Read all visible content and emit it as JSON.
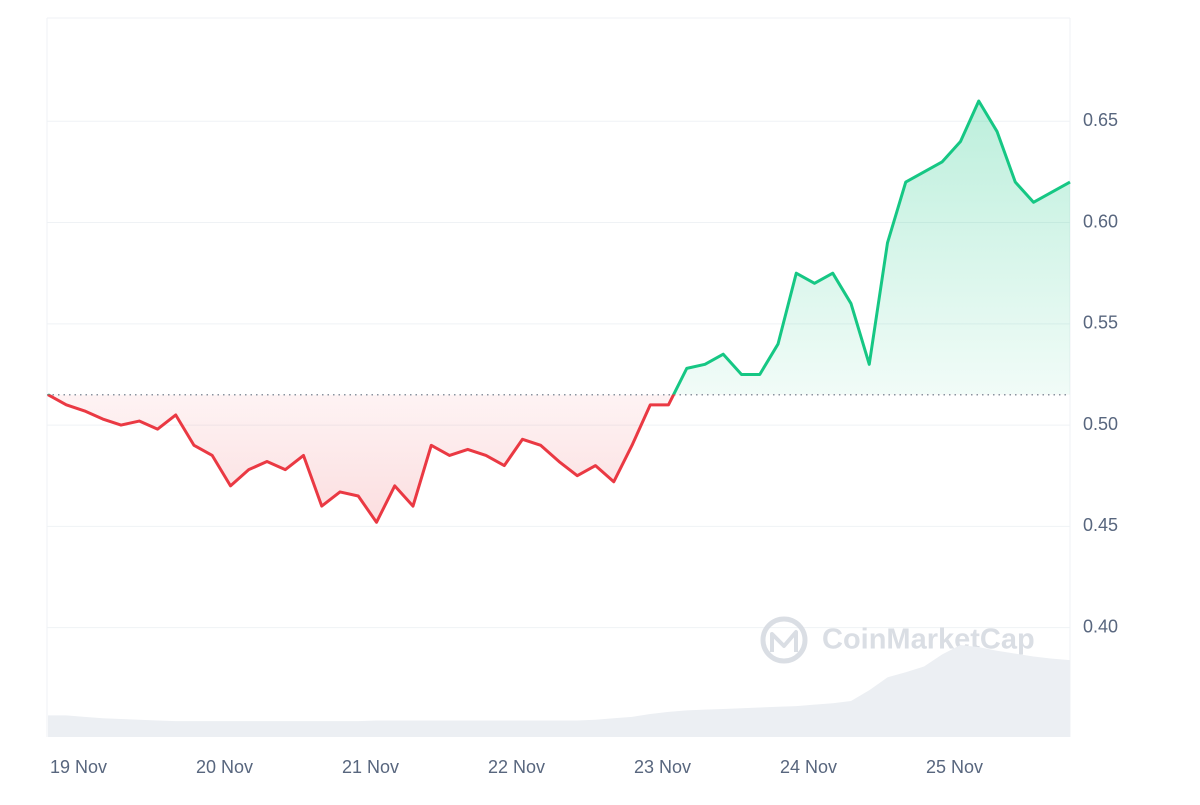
{
  "chart_data": {
    "type": "line",
    "watermark": "CoinMarketCap",
    "categories": [
      "19 Nov",
      null,
      null,
      null,
      null,
      null,
      null,
      null,
      "20 Nov",
      null,
      null,
      null,
      null,
      null,
      null,
      null,
      "21 Nov",
      null,
      null,
      null,
      null,
      null,
      null,
      null,
      "22 Nov",
      null,
      null,
      null,
      null,
      null,
      null,
      null,
      "23 Nov",
      null,
      null,
      null,
      null,
      null,
      null,
      null,
      "24 Nov",
      null,
      null,
      null,
      null,
      null,
      null,
      null,
      "25 Nov",
      null,
      null,
      null,
      null,
      null,
      null,
      null,
      null
    ],
    "baseline": 0.515,
    "up_color": "#16c784",
    "down_color": "#ea3943",
    "series": [
      {
        "values": [
          0.515,
          0.51,
          0.507,
          0.503,
          0.5,
          0.502,
          0.498,
          0.505,
          0.49,
          0.485,
          0.47,
          0.478,
          0.482,
          0.478,
          0.485,
          0.46,
          0.467,
          0.465,
          0.452,
          0.47,
          0.46,
          0.49,
          0.485,
          0.488,
          0.485,
          0.48,
          0.493,
          0.49,
          0.482,
          0.475,
          0.48,
          0.472,
          0.49,
          0.51,
          0.51,
          0.528,
          0.53,
          0.535,
          0.525,
          0.525,
          0.54,
          0.575,
          0.57,
          0.575,
          0.56,
          0.53,
          0.59,
          0.62,
          0.625,
          0.63,
          0.64,
          0.66,
          0.645,
          0.62,
          0.61,
          0.615,
          0.62
        ]
      },
      {
        "axis": "y2",
        "color": "#eceff3",
        "values": [
          3,
          3,
          2.8,
          2.6,
          2.5,
          2.4,
          2.3,
          2.2,
          2.2,
          2.2,
          2.2,
          2.2,
          2.2,
          2.2,
          2.2,
          2.2,
          2.2,
          2.2,
          2.3,
          2.3,
          2.3,
          2.3,
          2.3,
          2.3,
          2.3,
          2.3,
          2.3,
          2.3,
          2.3,
          2.3,
          2.4,
          2.6,
          2.8,
          3.2,
          3.5,
          3.7,
          3.8,
          3.9,
          4,
          4.1,
          4.2,
          4.3,
          4.5,
          4.7,
          5,
          6.5,
          8.3,
          9,
          9.8,
          11.5,
          12.8,
          12.5,
          12,
          11.6,
          11.2,
          10.9,
          10.7
        ]
      }
    ],
    "ylim": [
      0.346,
      0.701
    ],
    "yticks": [
      {
        "value": 0.4,
        "label": "0.40"
      },
      0.45,
      {
        "value": 0.5,
        "label": "0.50"
      },
      0.55,
      {
        "value": 0.6,
        "label": "0.60"
      },
      0.65
    ],
    "y2lim": [
      0,
      100
    ],
    "grid": true
  }
}
